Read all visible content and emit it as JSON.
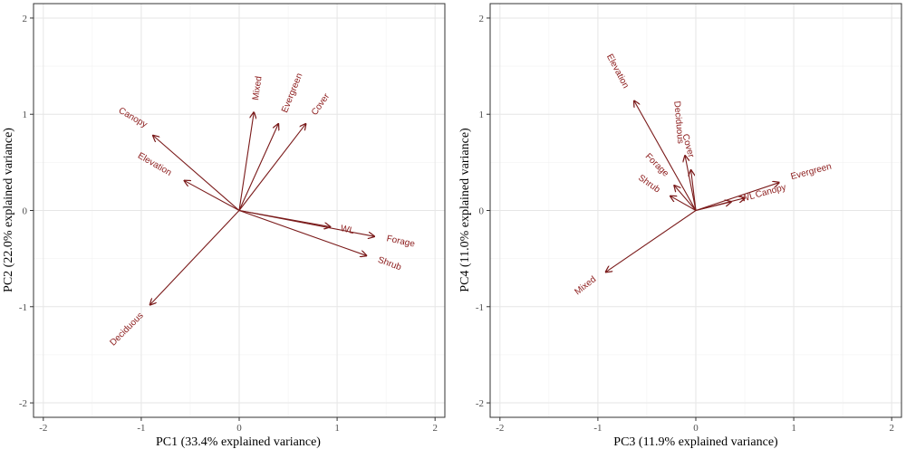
{
  "chart_data": [
    {
      "type": "biplot",
      "xlabel": "PC1 (33.4% explained variance)",
      "ylabel": "PC2 (22.0% explained variance)",
      "xlim": [
        -2.1,
        2.1
      ],
      "ylim": [
        -2.15,
        2.15
      ],
      "xticks": [
        -2,
        -1,
        0,
        1,
        2
      ],
      "yticks": [
        -2,
        -1,
        0,
        1,
        2
      ],
      "grid": true,
      "vectors": [
        {
          "label": "Canopy",
          "x": -0.88,
          "y": 0.78,
          "label_angle": 30
        },
        {
          "label": "Elevation",
          "x": -0.56,
          "y": 0.31,
          "label_angle": 30
        },
        {
          "label": "Mixed",
          "x": 0.15,
          "y": 1.02,
          "label_angle": -82
        },
        {
          "label": "Evergreen",
          "x": 0.4,
          "y": 0.9,
          "label_angle": -68
        },
        {
          "label": "Cover",
          "x": 0.68,
          "y": 0.9,
          "label_angle": -55
        },
        {
          "label": "WL",
          "x": 0.93,
          "y": -0.17,
          "label_angle": 12
        },
        {
          "label": "Forage",
          "x": 1.38,
          "y": -0.27,
          "label_angle": 12
        },
        {
          "label": "Shrub",
          "x": 1.3,
          "y": -0.47,
          "label_angle": 20
        },
        {
          "label": "Deciduous",
          "x": -0.91,
          "y": -0.98,
          "label_angle": -45
        }
      ]
    },
    {
      "type": "biplot",
      "xlabel": "PC3 (11.9% explained variance)",
      "ylabel": "PC4 (11.0% explained variance)",
      "xlim": [
        -2.1,
        2.1
      ],
      "ylim": [
        -2.15,
        2.15
      ],
      "xticks": [
        -2,
        -1,
        0,
        1,
        2
      ],
      "yticks": [
        -2,
        -1,
        0,
        1,
        2
      ],
      "grid": true,
      "vectors": [
        {
          "label": "Elevation",
          "x": -0.63,
          "y": 1.14,
          "label_angle": 62
        },
        {
          "label": "Deciduous",
          "x": -0.11,
          "y": 0.57,
          "label_angle": 85
        },
        {
          "label": "Cover",
          "x": -0.05,
          "y": 0.42,
          "label_angle": 75
        },
        {
          "label": "Forage",
          "x": -0.22,
          "y": 0.26,
          "label_angle": 45
        },
        {
          "label": "Shrub",
          "x": -0.26,
          "y": 0.15,
          "label_angle": 35
        },
        {
          "label": "Evergreen",
          "x": 0.85,
          "y": 0.29,
          "label_angle": -15
        },
        {
          "label": "Canopy",
          "x": 0.5,
          "y": 0.13,
          "label_angle": -15
        },
        {
          "label": "WL",
          "x": 0.36,
          "y": 0.09,
          "label_angle": -15
        },
        {
          "label": "Mixed",
          "x": -0.92,
          "y": -0.64,
          "label_angle": -38
        }
      ]
    }
  ],
  "colors": {
    "arrow": "#7a1a1a",
    "label": "#8b1a1a"
  }
}
